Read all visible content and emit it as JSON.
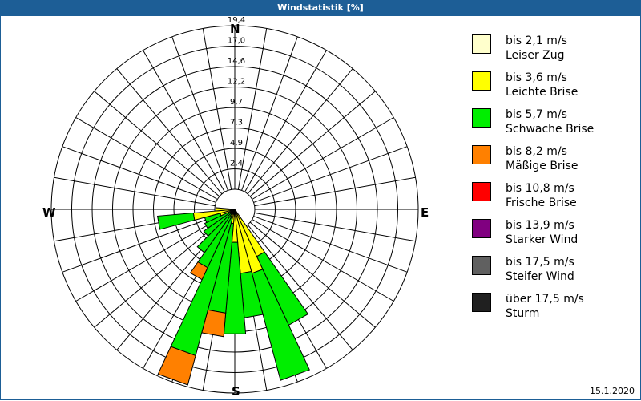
{
  "title": "Windstatistik [%]",
  "directions": {
    "n": "N",
    "e": "E",
    "s": "S",
    "w": "W"
  },
  "rings": [
    "2,4",
    "4,9",
    "7,3",
    "9,7",
    "12,2",
    "14,6",
    "17,0",
    "19,4"
  ],
  "legend": [
    {
      "range": "bis 2,1 m/s",
      "name": "Leiser Zug",
      "color": "#ffffcc"
    },
    {
      "range": "bis 3,6 m/s",
      "name": "Leichte Brise",
      "color": "#ffff00"
    },
    {
      "range": "bis 5,7 m/s",
      "name": "Schwache Brise",
      "color": "#00ee00"
    },
    {
      "range": "bis 8,2 m/s",
      "name": "Mäßige Brise",
      "color": "#ff8000"
    },
    {
      "range": "bis 10,8 m/s",
      "name": "Frische Brise",
      "color": "#ff0000"
    },
    {
      "range": "bis 13,9 m/s",
      "name": "Starker Wind",
      "color": "#800080"
    },
    {
      "range": "bis 17,5 m/s",
      "name": "Steifer Wind",
      "color": "#606060"
    },
    {
      "range": "über 17,5 m/s",
      "name": "Sturm",
      "color": "#202020"
    }
  ],
  "date": "15.1.2020",
  "chart_data": {
    "type": "wind-rose",
    "title": "Windstatistik [%]",
    "unit": "%",
    "ring_values": [
      2.4,
      4.9,
      7.3,
      9.7,
      12.2,
      14.6,
      17.0,
      19.4
    ],
    "sector_width_deg": 10,
    "speed_classes": [
      "bis 2,1 m/s",
      "bis 3,6 m/s",
      "bis 5,7 m/s",
      "bis 8,2 m/s",
      "bis 10,8 m/s",
      "bis 13,9 m/s",
      "bis 17,5 m/s",
      "über 17,5 m/s"
    ],
    "sectors": [
      {
        "dir_deg": 150,
        "cumulative": [
          0.3,
          5.5,
          13.5,
          13.5
        ]
      },
      {
        "dir_deg": 160,
        "cumulative": [
          0.3,
          7.0,
          18.7,
          18.7
        ]
      },
      {
        "dir_deg": 170,
        "cumulative": [
          0.3,
          6.8,
          11.5,
          11.5
        ]
      },
      {
        "dir_deg": 180,
        "cumulative": [
          0.3,
          3.5,
          13.2,
          13.2
        ]
      },
      {
        "dir_deg": 190,
        "cumulative": [
          0.3,
          1.5,
          11.0,
          13.5
        ]
      },
      {
        "dir_deg": 200,
        "cumulative": [
          0.3,
          1.0,
          16.0,
          19.2
        ]
      },
      {
        "dir_deg": 210,
        "cumulative": [
          0.3,
          0.8,
          6.8,
          8.2
        ]
      },
      {
        "dir_deg": 220,
        "cumulative": [
          0.3,
          0.6,
          5.6,
          5.6
        ]
      },
      {
        "dir_deg": 230,
        "cumulative": [
          0.3,
          0.5,
          4.0,
          4.0
        ]
      },
      {
        "dir_deg": 240,
        "cumulative": [
          0.3,
          0.5,
          3.5,
          3.5
        ]
      },
      {
        "dir_deg": 250,
        "cumulative": [
          0.3,
          1.6,
          3.3,
          3.3
        ]
      },
      {
        "dir_deg": 260,
        "cumulative": [
          0.3,
          4.4,
          8.2,
          8.2
        ]
      },
      {
        "dir_deg": 270,
        "cumulative": [
          0.3,
          2.0,
          2.0,
          2.0
        ]
      }
    ]
  }
}
